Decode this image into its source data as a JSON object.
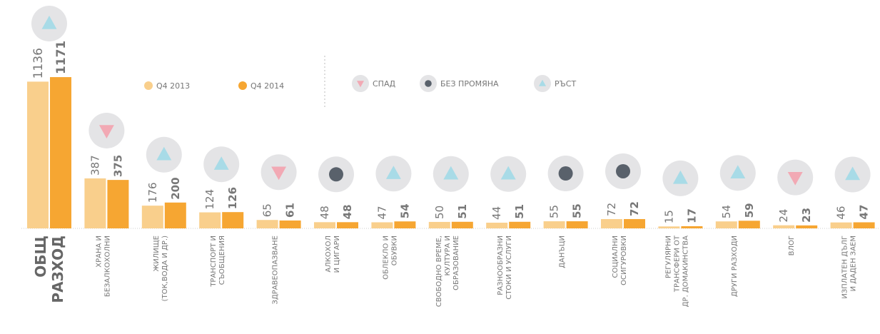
{
  "chart_data": {
    "type": "bar",
    "categories": [
      "ОБЩ\nРАЗХОД",
      "ХРАНА И\nБЕЗАЛКОХОЛНИ",
      "ЖИЛИЩЕ\n(ТОК,ВОДА И ДР.)",
      "ТРАНСПОРТ И\nСЪОБЩЕНИЯ",
      "ЗДРАВЕОПАЗВАНЕ",
      "АЛКОХОЛ\nИ ЦИГАРИ",
      "ОБЛЕКЛО И\nОБУВКИ",
      "СВОБОДНО ВРЕМЕ,\nКУЛТУРА И\nОБРАЗОВАНИЕ",
      "РАЗНООБРАЗНИ\nСТОКИ И УСЛУГИ",
      "ДАНЪЦИ",
      "СОЦИАЛНИ\nОСИГУРОВКИ",
      "РЕГУЛЯРНИ\nТРАНСФЕРИ ОТ\nДР. ДОМАКИНСТВА",
      "ДРУГИ РАЗХОДИ",
      "ВЛОГ",
      "ИЗПЛАТЕН ДЪЛГ\nИ ДАДЕН ЗАЕМ"
    ],
    "series": [
      {
        "name": "Q4 2013",
        "color": "#f9cf8c",
        "values": [
          1136,
          387,
          176,
          124,
          65,
          48,
          47,
          50,
          44,
          55,
          72,
          15,
          54,
          24,
          46
        ]
      },
      {
        "name": "Q4 2014",
        "color": "#f6a632",
        "values": [
          1171,
          375,
          200,
          126,
          61,
          48,
          54,
          51,
          51,
          55,
          72,
          17,
          59,
          23,
          47
        ]
      }
    ],
    "trend_labels": [
      "СПАД",
      "БЕЗ ПРОМЯНА",
      "РЪСТ"
    ]
  }
}
